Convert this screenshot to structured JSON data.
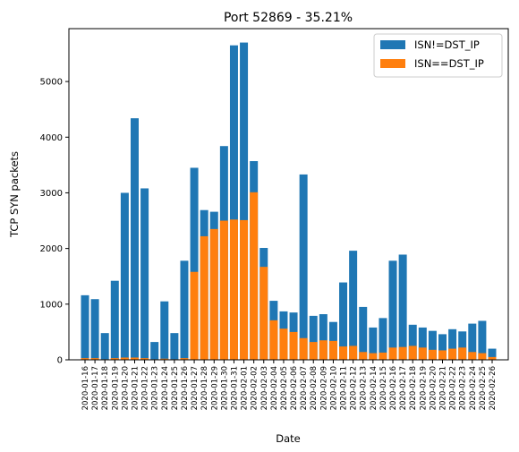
{
  "chart_data": {
    "type": "bar",
    "stacked": "overlay",
    "title": "Port 52869 - 35.21%",
    "xlabel": "Date",
    "ylabel": "TCP SYN packets",
    "ylim": [
      0,
      5950
    ],
    "yticks": [
      0,
      1000,
      2000,
      3000,
      4000,
      5000
    ],
    "grid": false,
    "legend_position": "top-right",
    "categories": [
      "2020-01-16",
      "2020-01-17",
      "2020-01-18",
      "2020-01-19",
      "2020-01-20",
      "2020-01-21",
      "2020-01-22",
      "2020-01-23",
      "2020-01-24",
      "2020-01-25",
      "2020-01-26",
      "2020-01-27",
      "2020-01-28",
      "2020-01-29",
      "2020-01-30",
      "2020-01-31",
      "2020-02-01",
      "2020-02-02",
      "2020-02-03",
      "2020-02-04",
      "2020-02-05",
      "2020-02-06",
      "2020-02-07",
      "2020-02-08",
      "2020-02-09",
      "2020-02-10",
      "2020-02-11",
      "2020-02-12",
      "2020-02-13",
      "2020-02-14",
      "2020-02-15",
      "2020-02-16",
      "2020-02-17",
      "2020-02-18",
      "2020-02-19",
      "2020-02-20",
      "2020-02-21",
      "2020-02-22",
      "2020-02-23",
      "2020-02-24",
      "2020-02-25",
      "2020-02-26"
    ],
    "series": [
      {
        "name": "ISN!=DST_IP",
        "color": "#1f77b4",
        "values": [
          1160,
          1090,
          480,
          1420,
          3000,
          4340,
          3080,
          320,
          1050,
          480,
          1780,
          3450,
          2690,
          2660,
          3840,
          5650,
          5700,
          3570,
          2010,
          1060,
          870,
          850,
          3330,
          790,
          820,
          680,
          1390,
          1960,
          950,
          580,
          750,
          1780,
          1890,
          630,
          580,
          520,
          460,
          550,
          510,
          650,
          700,
          200
        ]
      },
      {
        "name": "ISN==DST_IP",
        "color": "#ff7f0e",
        "values": [
          30,
          30,
          10,
          30,
          40,
          40,
          30,
          10,
          20,
          10,
          30,
          1580,
          2220,
          2350,
          2500,
          2520,
          2510,
          3010,
          1670,
          710,
          560,
          500,
          390,
          320,
          350,
          340,
          240,
          250,
          140,
          120,
          130,
          220,
          230,
          250,
          220,
          180,
          170,
          200,
          220,
          140,
          120,
          50
        ]
      }
    ]
  }
}
